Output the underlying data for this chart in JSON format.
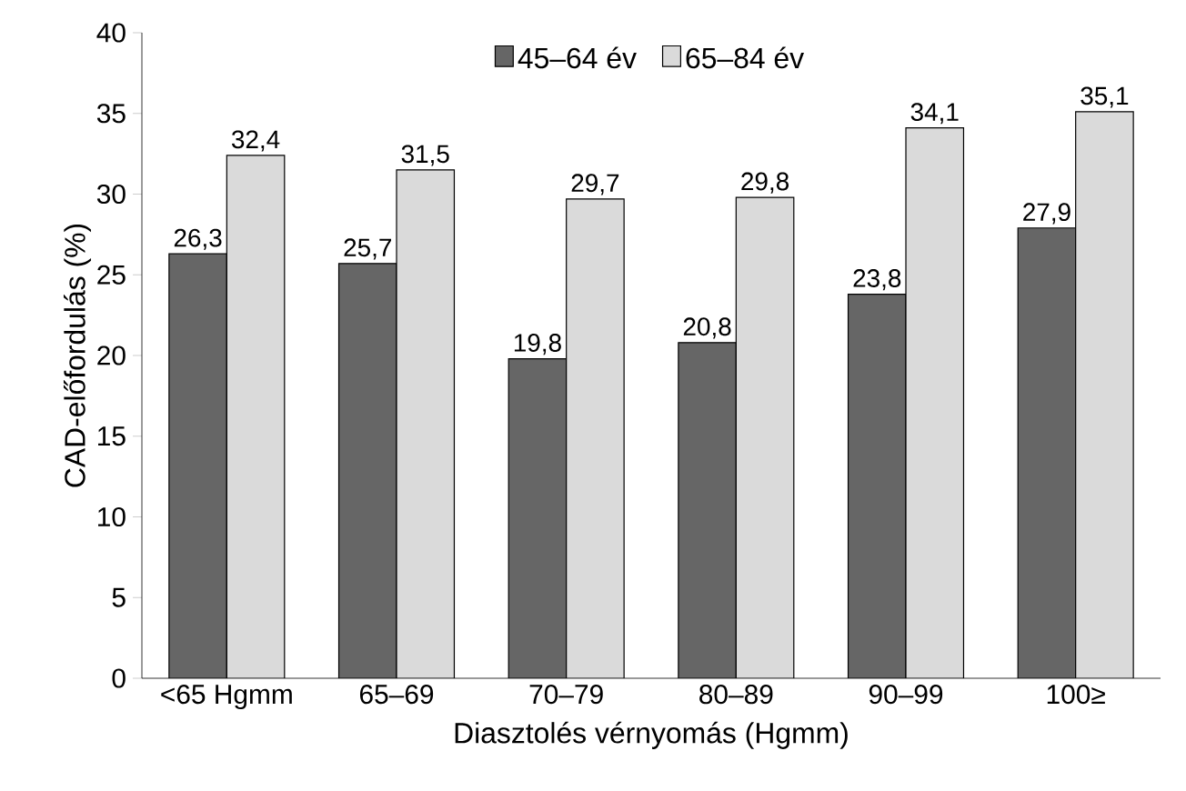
{
  "chart_data": {
    "type": "bar",
    "xlabel": "Diasztolés vérnyomás (Hgmm)",
    "ylabel": "CAD-előfordulás (%)",
    "categories": [
      "<65 Hgmm",
      "65–69",
      "70–79",
      "80–89",
      "90–99",
      "100≥"
    ],
    "series": [
      {
        "name": "45–64 év",
        "color": "#666666",
        "values": [
          26.3,
          25.7,
          19.8,
          20.8,
          23.8,
          27.9
        ],
        "value_labels": [
          "26,3",
          "25,7",
          "19,8",
          "20,8",
          "23,8",
          "27,9"
        ]
      },
      {
        "name": "65–84 év",
        "color": "#dadada",
        "values": [
          32.4,
          31.5,
          29.7,
          29.8,
          34.1,
          35.1
        ],
        "value_labels": [
          "32,4",
          "31,5",
          "29,7",
          "29,8",
          "34,1",
          "35,1"
        ]
      }
    ],
    "ylim": [
      0,
      40
    ],
    "yticks": [
      0,
      5,
      10,
      15,
      20,
      25,
      30,
      35,
      40
    ],
    "legend": "top",
    "grid": false
  }
}
